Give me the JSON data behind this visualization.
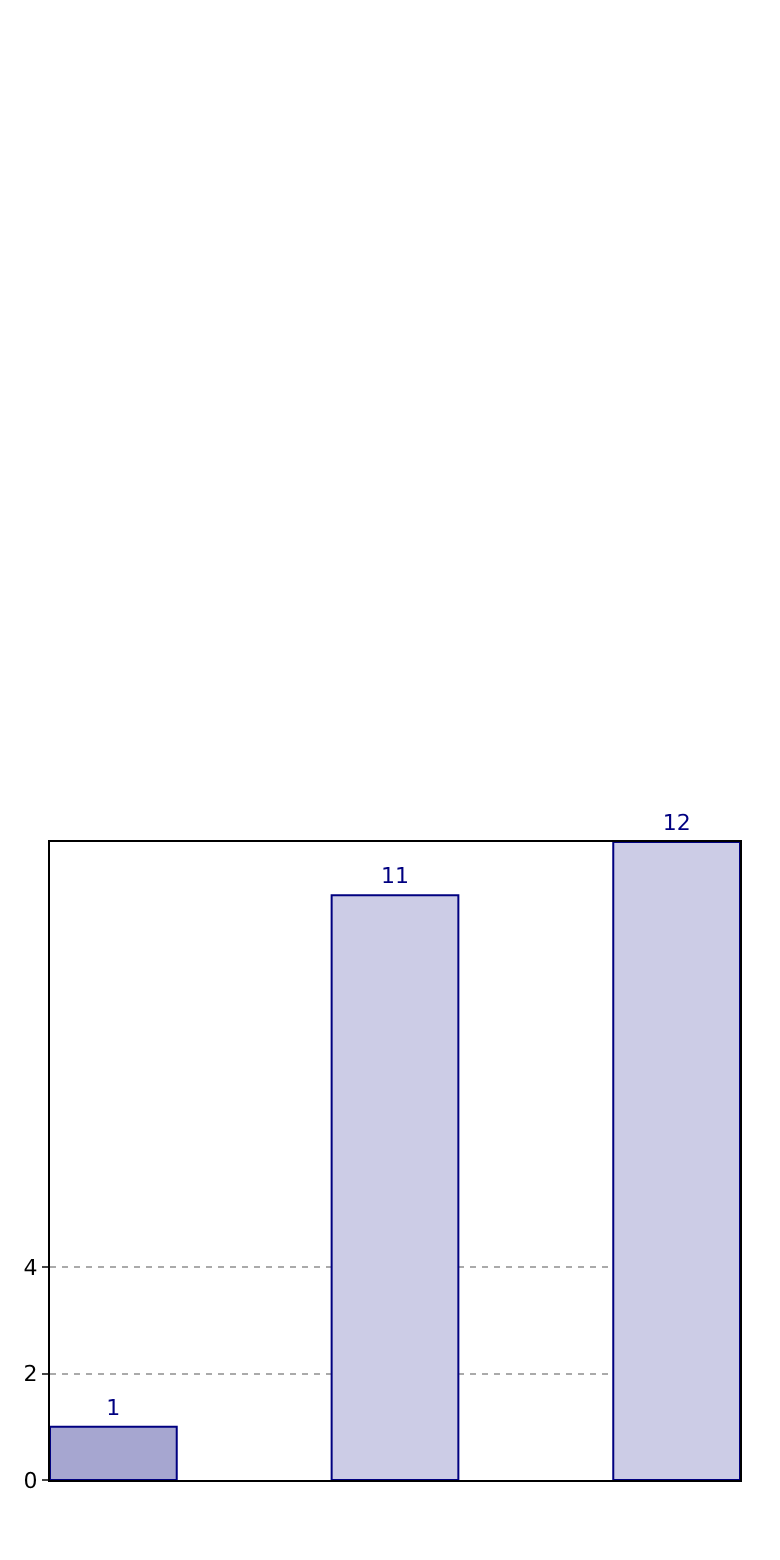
{
  "chart_data": {
    "type": "bar",
    "categories": [
      null,
      null,
      null
    ],
    "values": [
      1,
      11,
      12
    ],
    "colors": [
      "#a6a6d0",
      "#ccccE6",
      "#ccccE6"
    ],
    "ylim": [
      0,
      12
    ],
    "yticks": [
      0,
      2,
      4
    ],
    "grid": "y",
    "data_labels": true
  }
}
